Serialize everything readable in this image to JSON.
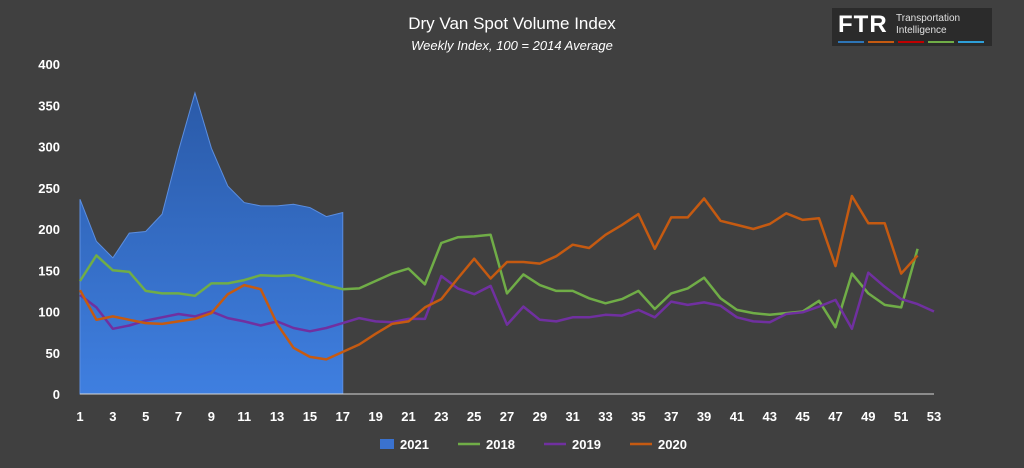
{
  "chart_data": {
    "type": "line",
    "title": "Dry Van Spot Volume Index",
    "subtitle": "Weekly Index, 100 = 2014 Average",
    "xlabel": "",
    "ylabel": "",
    "xlim": [
      1,
      53
    ],
    "ylim": [
      0,
      400
    ],
    "x_ticks": [
      1,
      3,
      5,
      7,
      9,
      11,
      13,
      15,
      17,
      19,
      21,
      23,
      25,
      27,
      29,
      31,
      33,
      35,
      37,
      39,
      41,
      43,
      45,
      47,
      49,
      51,
      53
    ],
    "y_ticks": [
      0,
      50,
      100,
      150,
      200,
      250,
      300,
      350,
      400
    ],
    "grid": false,
    "legend_position": "bottom",
    "series": [
      {
        "name": "2021",
        "type": "area",
        "color": "#3a72cf",
        "x": [
          1,
          2,
          3,
          4,
          5,
          6,
          7,
          8,
          9,
          10,
          11,
          12,
          13,
          14,
          15,
          16,
          17
        ],
        "values": [
          236,
          185,
          165,
          195,
          197,
          218,
          295,
          365,
          298,
          252,
          232,
          228,
          228,
          230,
          226,
          215,
          220
        ]
      },
      {
        "name": "2018",
        "type": "line",
        "color": "#70ad47",
        "x": [
          1,
          2,
          3,
          4,
          5,
          6,
          7,
          8,
          9,
          10,
          11,
          12,
          13,
          14,
          15,
          16,
          17,
          18,
          19,
          20,
          21,
          22,
          23,
          24,
          25,
          26,
          27,
          28,
          29,
          30,
          31,
          32,
          33,
          34,
          35,
          36,
          37,
          38,
          39,
          40,
          41,
          42,
          43,
          44,
          45,
          46,
          47,
          48,
          49,
          50,
          51,
          52
        ],
        "values": [
          137,
          168,
          150,
          148,
          125,
          122,
          122,
          119,
          134,
          134,
          138,
          144,
          143,
          144,
          138,
          132,
          127,
          128,
          137,
          146,
          152,
          133,
          183,
          190,
          191,
          193,
          122,
          145,
          132,
          125,
          125,
          116,
          110,
          115,
          125,
          103,
          122,
          128,
          141,
          116,
          102,
          98,
          96,
          98,
          100,
          113,
          81,
          146,
          122,
          108,
          105,
          176
        ]
      },
      {
        "name": "2019",
        "type": "line",
        "color": "#7030a0",
        "x": [
          1,
          2,
          3,
          4,
          5,
          6,
          7,
          8,
          9,
          10,
          11,
          12,
          13,
          14,
          15,
          16,
          17,
          18,
          19,
          20,
          21,
          22,
          23,
          24,
          25,
          26,
          27,
          28,
          29,
          30,
          31,
          32,
          33,
          34,
          35,
          36,
          37,
          38,
          39,
          40,
          41,
          42,
          43,
          44,
          45,
          46,
          47,
          48,
          49,
          50,
          51,
          52,
          53
        ],
        "values": [
          120,
          105,
          79,
          83,
          89,
          93,
          97,
          94,
          100,
          92,
          88,
          83,
          88,
          80,
          76,
          80,
          86,
          92,
          88,
          87,
          91,
          91,
          143,
          128,
          121,
          131,
          84,
          106,
          90,
          88,
          93,
          93,
          96,
          95,
          102,
          93,
          112,
          108,
          111,
          107,
          93,
          88,
          87,
          97,
          99,
          106,
          114,
          79,
          147,
          130,
          115,
          109,
          100
        ]
      },
      {
        "name": "2020",
        "type": "line",
        "color": "#c55a11",
        "x": [
          1,
          2,
          3,
          4,
          5,
          6,
          7,
          8,
          9,
          10,
          11,
          12,
          13,
          14,
          15,
          16,
          17,
          18,
          19,
          20,
          21,
          22,
          23,
          24,
          25,
          26,
          27,
          28,
          29,
          30,
          31,
          32,
          33,
          34,
          35,
          36,
          37,
          38,
          39,
          40,
          41,
          42,
          43,
          44,
          45,
          46,
          47,
          48,
          49,
          50,
          51,
          52
        ],
        "values": [
          126,
          90,
          94,
          90,
          86,
          85,
          88,
          91,
          98,
          121,
          132,
          127,
          85,
          56,
          45,
          42,
          51,
          60,
          73,
          85,
          88,
          105,
          115,
          140,
          164,
          140,
          160,
          160,
          158,
          167,
          181,
          177,
          193,
          205,
          218,
          176,
          214,
          214,
          237,
          210,
          205,
          200,
          206,
          219,
          211,
          213,
          155,
          240,
          207,
          207,
          146,
          168
        ]
      }
    ]
  },
  "logo": {
    "brand": "FTR",
    "tagline_line1": "Transportation",
    "tagline_line2": "Intelligence",
    "stripe_colors": [
      "#2e75b6",
      "#c55a11",
      "#c00000",
      "#70ad47",
      "#2e9fd8"
    ]
  }
}
